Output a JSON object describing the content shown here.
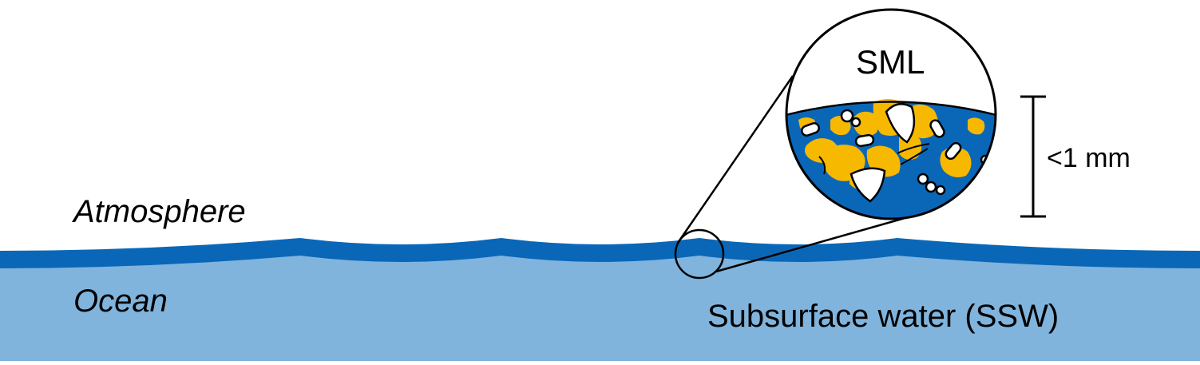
{
  "labels": {
    "atmosphere": "Atmosphere",
    "ocean": "Ocean",
    "subsurface_water": "Subsurface water (SSW)",
    "sml": "SML",
    "thickness": "<1 mm"
  },
  "colors": {
    "ocean_body": "#80b4dd",
    "surface_microlayer": "#0a67b8",
    "particle_yellow": "#f7b800",
    "particle_white": "#ffffff",
    "outline": "#000000"
  }
}
